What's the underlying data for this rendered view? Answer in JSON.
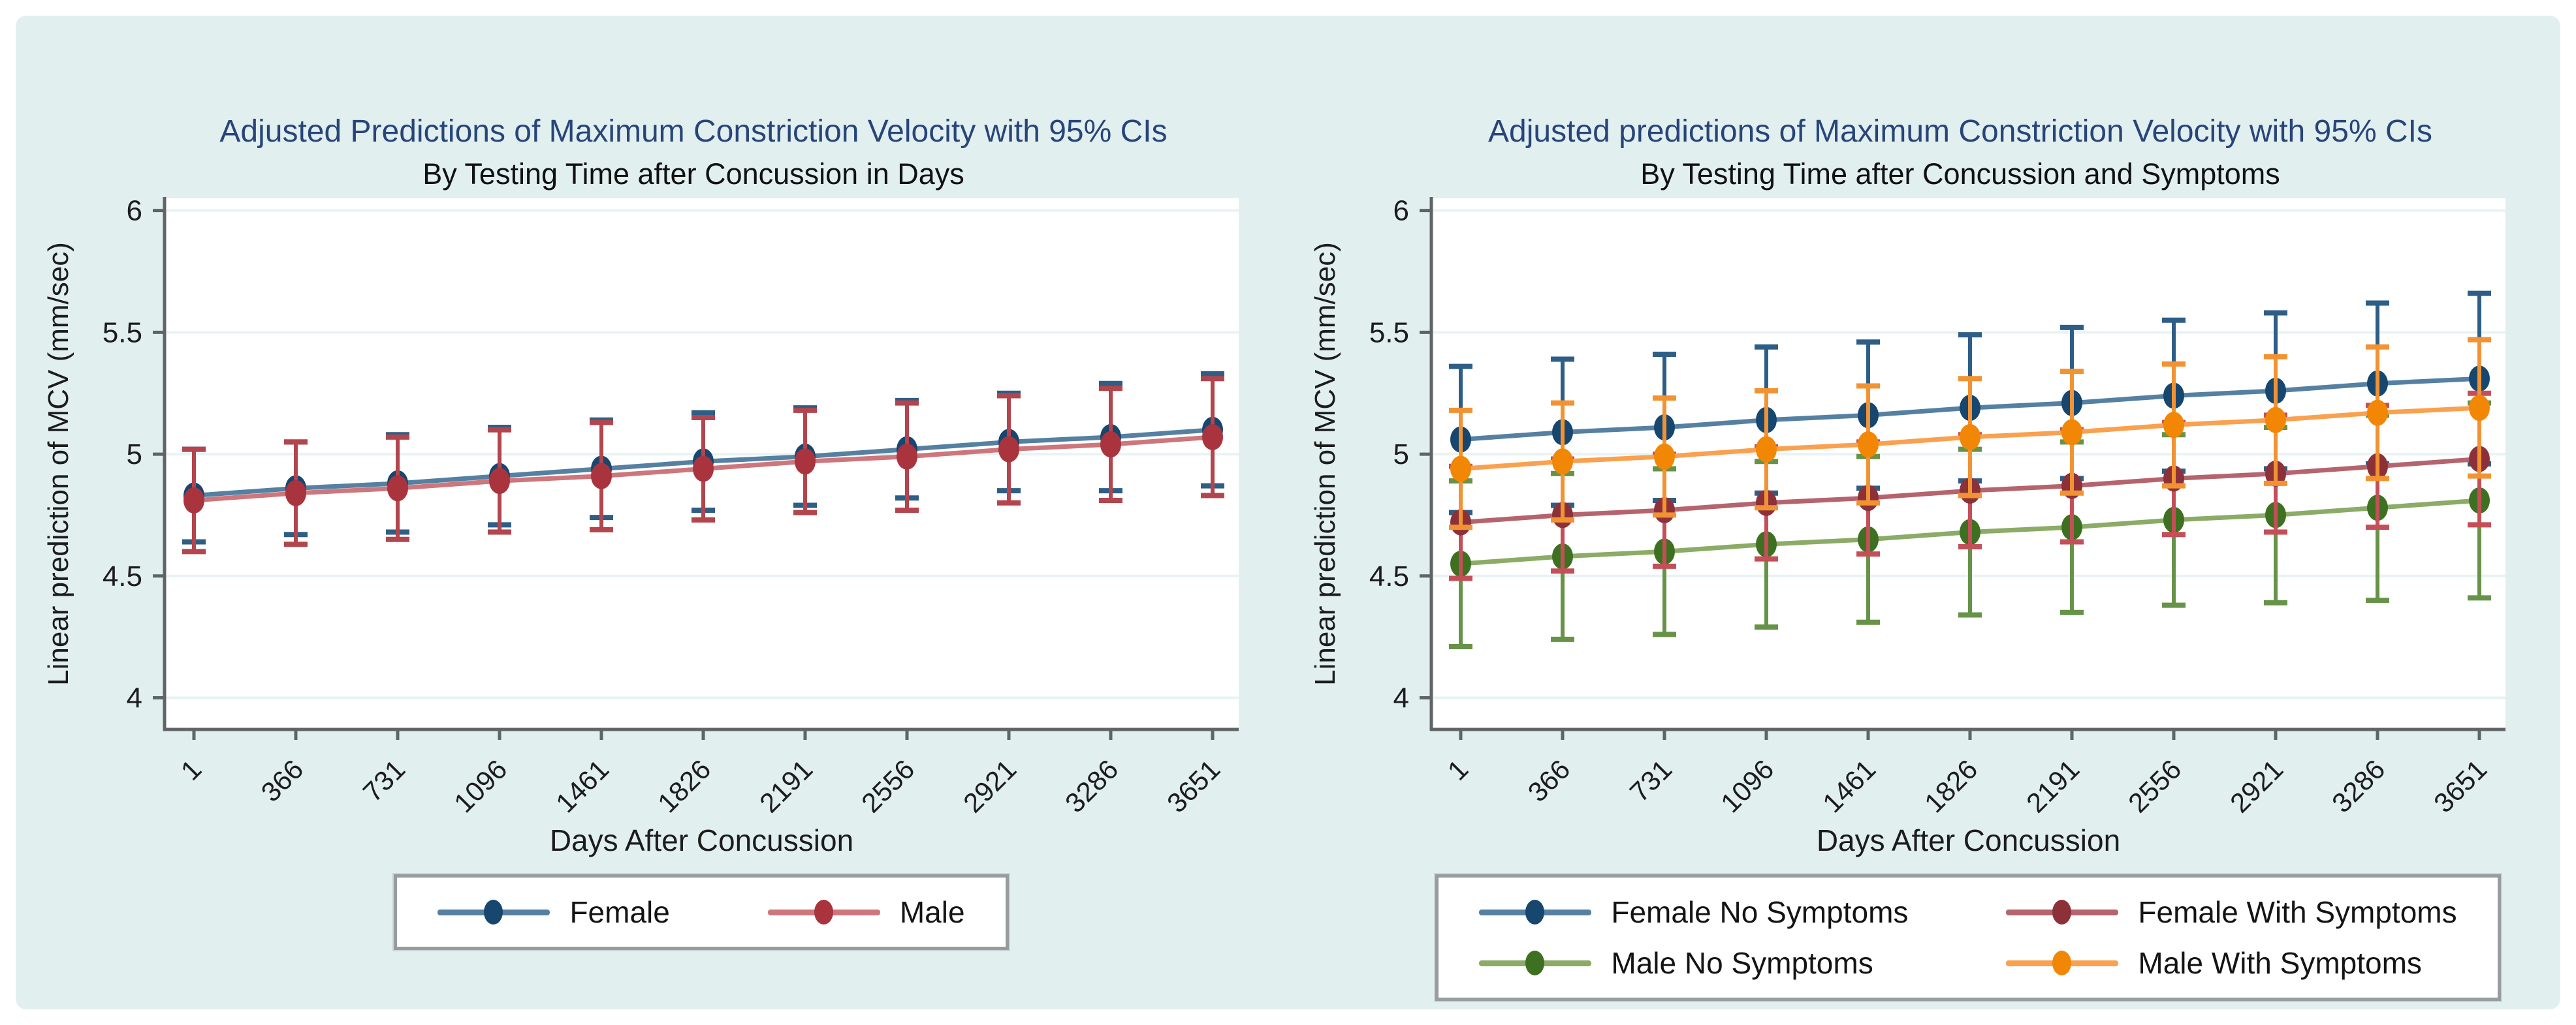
{
  "page": {
    "background": "#ffffff",
    "panel_background": "#e2efef"
  },
  "chart_data": [
    {
      "type": "line",
      "title": "Adjusted Predictions of Maximum Constriction Velocity with 95% CIs",
      "subtitle": "By Testing Time after Concussion in Days",
      "xlabel": "Days After Concussion",
      "ylabel": "Linear prediction of MCV (mm/sec)",
      "error_bars": "95% CI",
      "grid": true,
      "legend_position": "bottom",
      "legend_columns": 2,
      "x_categories": [
        "1",
        "366",
        "731",
        "1096",
        "1461",
        "1826",
        "2191",
        "2556",
        "2921",
        "3286",
        "3651"
      ],
      "yticks": [
        4,
        4.5,
        5,
        5.5,
        6
      ],
      "ytick_labels": [
        "4",
        "4.5",
        "5",
        "5.5",
        "6"
      ],
      "ylim": [
        3.87,
        6.05
      ],
      "colors": {
        "grid": "#e7f3f4",
        "axis": "#5f6466",
        "text": "#1c1c1c"
      },
      "draw_order": [
        0,
        1
      ],
      "series": [
        {
          "name": "Female",
          "line_color": "#5580a2",
          "marker_color": "#17466e",
          "error_color": "#2e5e86",
          "values": [
            4.83,
            4.86,
            4.88,
            4.91,
            4.94,
            4.97,
            4.99,
            5.02,
            5.05,
            5.07,
            5.1
          ],
          "ci_low": [
            4.64,
            4.67,
            4.68,
            4.71,
            4.74,
            4.77,
            4.79,
            4.82,
            4.85,
            4.85,
            4.87
          ],
          "ci_high": [
            5.02,
            5.05,
            5.08,
            5.11,
            5.14,
            5.17,
            5.19,
            5.22,
            5.25,
            5.29,
            5.33
          ]
        },
        {
          "name": "Male",
          "line_color": "#cd767c",
          "marker_color": "#aa343d",
          "error_color": "#b2454d",
          "values": [
            4.81,
            4.84,
            4.86,
            4.89,
            4.91,
            4.94,
            4.97,
            4.99,
            5.02,
            5.04,
            5.07
          ],
          "ci_low": [
            4.6,
            4.63,
            4.65,
            4.68,
            4.69,
            4.73,
            4.76,
            4.77,
            4.8,
            4.81,
            4.83
          ],
          "ci_high": [
            5.02,
            5.05,
            5.07,
            5.1,
            5.13,
            5.15,
            5.18,
            5.21,
            5.24,
            5.27,
            5.31
          ]
        }
      ]
    },
    {
      "type": "line",
      "title": "Adjusted predictions of Maximum Constriction Velocity with 95% CIs",
      "subtitle": "By Testing Time after Concussion and Symptoms",
      "xlabel": "Days After Concussion",
      "ylabel": "Linear prediction of MCV (mm/sec)",
      "error_bars": "95% CI",
      "grid": true,
      "legend_position": "bottom",
      "legend_columns": 2,
      "x_categories": [
        "1",
        "366",
        "731",
        "1096",
        "1461",
        "1826",
        "2191",
        "2556",
        "2921",
        "3286",
        "3651"
      ],
      "yticks": [
        4,
        4.5,
        5,
        5.5,
        6
      ],
      "ytick_labels": [
        "4",
        "4.5",
        "5",
        "5.5",
        "6"
      ],
      "ylim": [
        3.87,
        6.05
      ],
      "colors": {
        "grid": "#e7f3f4",
        "axis": "#5f6466",
        "text": "#1c1c1c"
      },
      "draw_order": [
        0,
        2,
        1,
        3
      ],
      "series": [
        {
          "name": "Female No Symptoms",
          "line_color": "#5580a2",
          "marker_color": "#17466e",
          "error_color": "#2e5e86",
          "values": [
            5.06,
            5.09,
            5.11,
            5.14,
            5.16,
            5.19,
            5.21,
            5.24,
            5.26,
            5.29,
            5.31
          ],
          "ci_low": [
            4.76,
            4.79,
            4.81,
            4.84,
            4.86,
            4.89,
            4.9,
            4.93,
            4.94,
            4.96,
            4.96
          ],
          "ci_high": [
            5.36,
            5.39,
            5.41,
            5.44,
            5.46,
            5.49,
            5.52,
            5.55,
            5.58,
            5.62,
            5.66
          ]
        },
        {
          "name": "Female With Symptoms",
          "line_color": "#b5646e",
          "marker_color": "#8d3139",
          "error_color": "#c44f58",
          "values": [
            4.72,
            4.75,
            4.77,
            4.8,
            4.82,
            4.85,
            4.87,
            4.9,
            4.92,
            4.95,
            4.98
          ],
          "ci_low": [
            4.49,
            4.52,
            4.54,
            4.57,
            4.59,
            4.62,
            4.64,
            4.67,
            4.68,
            4.7,
            4.71
          ],
          "ci_high": [
            4.95,
            4.98,
            5.0,
            5.03,
            5.05,
            5.08,
            5.1,
            5.13,
            5.16,
            5.2,
            5.25
          ]
        },
        {
          "name": "Male No Symptoms",
          "line_color": "#8bab66",
          "marker_color": "#3e7021",
          "error_color": "#679349",
          "values": [
            4.55,
            4.58,
            4.6,
            4.63,
            4.65,
            4.68,
            4.7,
            4.73,
            4.75,
            4.78,
            4.81
          ],
          "ci_low": [
            4.21,
            4.24,
            4.26,
            4.29,
            4.31,
            4.34,
            4.35,
            4.38,
            4.39,
            4.4,
            4.41
          ],
          "ci_high": [
            4.89,
            4.92,
            4.94,
            4.97,
            4.99,
            5.02,
            5.05,
            5.08,
            5.11,
            5.16,
            5.21
          ]
        },
        {
          "name": "Male With Symptoms",
          "line_color": "#f9a14f",
          "marker_color": "#f28705",
          "error_color": "#f29333",
          "values": [
            4.94,
            4.97,
            4.99,
            5.02,
            5.04,
            5.07,
            5.09,
            5.12,
            5.14,
            5.17,
            5.19
          ],
          "ci_low": [
            4.7,
            4.73,
            4.75,
            4.78,
            4.8,
            4.83,
            4.84,
            4.87,
            4.88,
            4.9,
            4.91
          ],
          "ci_high": [
            5.18,
            5.21,
            5.23,
            5.26,
            5.28,
            5.31,
            5.34,
            5.37,
            5.4,
            5.44,
            5.47
          ]
        }
      ]
    }
  ]
}
